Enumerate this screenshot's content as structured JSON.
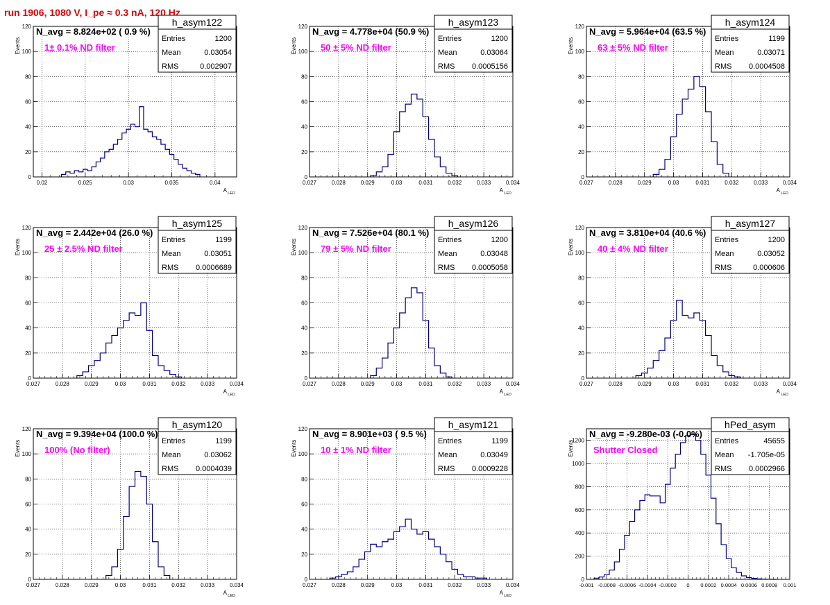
{
  "run_title": "run 1906,  1080 V, I_pe ≈ 0.3 nA, 120 Hz",
  "stats_labels": {
    "entries": "Entries",
    "mean": "Mean",
    "rms": "RMS"
  },
  "colors": {
    "histogram": "#000080",
    "filter_label": "#ff00ff",
    "run_title": "#e00000",
    "grid": "#000000"
  },
  "chart_data": [
    {
      "type": "bar",
      "name": "h_asym122",
      "navg": "N_avg = 8.824e+02 ( 0.9 %)",
      "filter": "1± 0.1% ND filter",
      "entries": "1200",
      "mean": "0.03054",
      "rms": "0.002907",
      "xlabel": "A",
      "xlabel_sub": "LED",
      "ylabel": "Events",
      "xlim": [
        0.019,
        0.0425
      ],
      "ylim": [
        0,
        120
      ],
      "x_ticks": [
        "0.02",
        "0.025",
        "0.03",
        "0.035",
        "0.04"
      ],
      "y_ticks": [
        "0",
        "20",
        "40",
        "60",
        "80",
        "100",
        "120"
      ],
      "x": [
        0.0225,
        0.023,
        0.0235,
        0.024,
        0.0245,
        0.025,
        0.0255,
        0.026,
        0.0265,
        0.027,
        0.0275,
        0.028,
        0.0285,
        0.029,
        0.0295,
        0.03,
        0.0305,
        0.031,
        0.0315,
        0.032,
        0.0325,
        0.033,
        0.0335,
        0.034,
        0.0345,
        0.035,
        0.0355,
        0.036,
        0.0365,
        0.037,
        0.0375,
        0.038
      ],
      "values": [
        2,
        4,
        3,
        5,
        4,
        6,
        5,
        8,
        12,
        15,
        20,
        22,
        26,
        30,
        35,
        38,
        42,
        40,
        56,
        38,
        36,
        32,
        30,
        26,
        22,
        18,
        14,
        10,
        7,
        5,
        3,
        2
      ]
    },
    {
      "type": "bar",
      "name": "h_asym123",
      "navg": "N_avg = 4.778e+04 (50.9 %)",
      "filter": "50 ± 5% ND filter",
      "entries": "1200",
      "mean": "0.03064",
      "rms": "0.0005156",
      "xlabel": "A",
      "xlabel_sub": "LED",
      "ylabel": "Events",
      "xlim": [
        0.027,
        0.034
      ],
      "ylim": [
        0,
        120
      ],
      "x_ticks": [
        "0.027",
        "0.028",
        "0.029",
        "0.03",
        "0.031",
        "0.032",
        "0.033",
        "0.034"
      ],
      "y_ticks": [
        "0",
        "20",
        "40",
        "60",
        "80",
        "100",
        "120"
      ],
      "x": [
        0.0292,
        0.0294,
        0.0296,
        0.0298,
        0.03,
        0.0302,
        0.0304,
        0.0306,
        0.0308,
        0.031,
        0.0312,
        0.0314,
        0.0316,
        0.0318,
        0.032
      ],
      "values": [
        1,
        4,
        8,
        18,
        36,
        52,
        58,
        66,
        62,
        48,
        30,
        16,
        8,
        3,
        1
      ]
    },
    {
      "type": "bar",
      "name": "h_asym124",
      "navg": "N_avg = 5.964e+04 (63.5 %)",
      "filter": "63 ± 5% ND filter",
      "entries": "1199",
      "mean": "0.03071",
      "rms": "0.0004508",
      "xlabel": "A",
      "xlabel_sub": "LED",
      "ylabel": "Events",
      "xlim": [
        0.027,
        0.034
      ],
      "ylim": [
        0,
        120
      ],
      "x_ticks": [
        "0.027",
        "0.028",
        "0.029",
        "0.03",
        "0.031",
        "0.032",
        "0.033",
        "0.034"
      ],
      "y_ticks": [
        "0",
        "20",
        "40",
        "60",
        "80",
        "100",
        "120"
      ],
      "x": [
        0.0294,
        0.0296,
        0.0298,
        0.03,
        0.0302,
        0.0304,
        0.0306,
        0.0308,
        0.031,
        0.0312,
        0.0314,
        0.0316,
        0.0318
      ],
      "values": [
        2,
        6,
        14,
        32,
        50,
        62,
        70,
        80,
        72,
        52,
        28,
        10,
        3
      ]
    },
    {
      "type": "bar",
      "name": "h_asym125",
      "navg": "N_avg = 2.442e+04 (26.0 %)",
      "filter": "25 ± 2.5% ND filter",
      "entries": "1199",
      "mean": "0.03051",
      "rms": "0.0006689",
      "xlabel": "A",
      "xlabel_sub": "LED",
      "ylabel": "Events",
      "xlim": [
        0.027,
        0.034
      ],
      "ylim": [
        0,
        120
      ],
      "x_ticks": [
        "0.027",
        "0.028",
        "0.029",
        "0.03",
        "0.031",
        "0.032",
        "0.033",
        "0.034"
      ],
      "y_ticks": [
        "0",
        "20",
        "40",
        "60",
        "80",
        "100",
        "120"
      ],
      "x": [
        0.0286,
        0.0288,
        0.029,
        0.0292,
        0.0294,
        0.0296,
        0.0298,
        0.03,
        0.0302,
        0.0304,
        0.0306,
        0.0308,
        0.031,
        0.0312,
        0.0314,
        0.0316,
        0.0318,
        0.032
      ],
      "values": [
        2,
        5,
        10,
        14,
        20,
        28,
        34,
        40,
        46,
        52,
        50,
        60,
        38,
        18,
        10,
        6,
        3,
        1
      ]
    },
    {
      "type": "bar",
      "name": "h_asym126",
      "navg": "N_avg = 7.526e+04 (80.1 %)",
      "filter": "79 ± 5% ND filter",
      "entries": "1200",
      "mean": "0.03048",
      "rms": "0.0005058",
      "xlabel": "A",
      "xlabel_sub": "LED",
      "ylabel": "Events",
      "xlim": [
        0.027,
        0.034
      ],
      "ylim": [
        0,
        120
      ],
      "x_ticks": [
        "0.027",
        "0.028",
        "0.029",
        "0.03",
        "0.031",
        "0.032",
        "0.033",
        "0.034"
      ],
      "y_ticks": [
        "0",
        "20",
        "40",
        "60",
        "80",
        "100",
        "120"
      ],
      "x": [
        0.0292,
        0.0294,
        0.0296,
        0.0298,
        0.03,
        0.0302,
        0.0304,
        0.0306,
        0.0308,
        0.031,
        0.0312,
        0.0314,
        0.0316,
        0.0318
      ],
      "values": [
        2,
        8,
        16,
        28,
        40,
        52,
        64,
        72,
        68,
        46,
        24,
        10,
        4,
        1
      ]
    },
    {
      "type": "bar",
      "name": "h_asym127",
      "navg": "N_avg = 3.810e+04 (40.6 %)",
      "filter": "40 ± 4% ND filter",
      "entries": "1200",
      "mean": "0.03052",
      "rms": "0.000606",
      "xlabel": "A",
      "xlabel_sub": "LED",
      "ylabel": "Events",
      "xlim": [
        0.027,
        0.034
      ],
      "ylim": [
        0,
        120
      ],
      "x_ticks": [
        "0.027",
        "0.028",
        "0.029",
        "0.03",
        "0.031",
        "0.032",
        "0.033",
        "0.034"
      ],
      "y_ticks": [
        "0",
        "20",
        "40",
        "60",
        "80",
        "100",
        "120"
      ],
      "x": [
        0.0288,
        0.029,
        0.0292,
        0.0294,
        0.0296,
        0.0298,
        0.03,
        0.0302,
        0.0304,
        0.0306,
        0.0308,
        0.031,
        0.0312,
        0.0314,
        0.0316,
        0.0318,
        0.032,
        0.0322
      ],
      "values": [
        2,
        4,
        8,
        14,
        22,
        32,
        46,
        62,
        50,
        48,
        52,
        46,
        34,
        18,
        10,
        5,
        2,
        1
      ]
    },
    {
      "type": "bar",
      "name": "h_asym120",
      "navg": "N_avg = 9.394e+04 (100.0 %)",
      "filter": "100% (No filter)",
      "entries": "1199",
      "mean": "0.03062",
      "rms": "0.0004039",
      "xlabel": "A",
      "xlabel_sub": "LED",
      "ylabel": "Events",
      "xlim": [
        0.027,
        0.034
      ],
      "ylim": [
        0,
        120
      ],
      "x_ticks": [
        "0.027",
        "0.028",
        "0.029",
        "0.03",
        "0.031",
        "0.032",
        "0.033",
        "0.034"
      ],
      "y_ticks": [
        "0",
        "20",
        "40",
        "60",
        "80",
        "100",
        "120"
      ],
      "x": [
        0.0296,
        0.0298,
        0.03,
        0.0302,
        0.0304,
        0.0306,
        0.0308,
        0.031,
        0.0312,
        0.0314,
        0.0316
      ],
      "values": [
        3,
        10,
        24,
        50,
        74,
        86,
        82,
        60,
        30,
        10,
        3
      ]
    },
    {
      "type": "bar",
      "name": "h_asym121",
      "navg": "N_avg = 8.901e+03 ( 9.5 %)",
      "filter": "10 ± 1% ND filter",
      "entries": "1199",
      "mean": "0.03049",
      "rms": "0.0009228",
      "xlabel": "A",
      "xlabel_sub": "LED",
      "ylabel": "Events",
      "xlim": [
        0.027,
        0.034
      ],
      "ylim": [
        0,
        120
      ],
      "x_ticks": [
        "0.027",
        "0.028",
        "0.029",
        "0.03",
        "0.031",
        "0.032",
        "0.033",
        "0.034"
      ],
      "y_ticks": [
        "0",
        "20",
        "40",
        "60",
        "80",
        "100",
        "120"
      ],
      "x": [
        0.0278,
        0.028,
        0.0282,
        0.0284,
        0.0286,
        0.0288,
        0.029,
        0.0292,
        0.0294,
        0.0296,
        0.0298,
        0.03,
        0.0302,
        0.0304,
        0.0306,
        0.0308,
        0.031,
        0.0312,
        0.0314,
        0.0316,
        0.0318,
        0.032,
        0.0322,
        0.0324,
        0.0326,
        0.0328,
        0.033
      ],
      "values": [
        1,
        2,
        4,
        6,
        10,
        16,
        22,
        28,
        26,
        30,
        32,
        38,
        42,
        48,
        40,
        36,
        38,
        32,
        26,
        20,
        14,
        8,
        4,
        2,
        2,
        1,
        1
      ]
    },
    {
      "type": "bar",
      "name": "hPed_asym",
      "navg": "N_avg = -9.280e-03 (-0.0%)",
      "filter": "Shutter Closed",
      "entries": "45655",
      "mean": "-1.705e-05",
      "rms": "0.0002966",
      "xlabel": "",
      "xlabel_sub": "",
      "ylabel": "Events",
      "xlim": [
        -0.001,
        0.001
      ],
      "ylim": [
        0,
        1300
      ],
      "x_ticks": [
        "-0.001",
        "-0.0008",
        "-0.0006",
        "-0.0004",
        "-0.0002",
        "0",
        "0.0002",
        "0.0004",
        "0.0006",
        "0.0008",
        "0.001"
      ],
      "y_ticks": [
        "0",
        "200",
        "400",
        "600",
        "800",
        "1000",
        "1200"
      ],
      "x": [
        -0.0009,
        -0.00085,
        -0.0008,
        -0.00075,
        -0.0007,
        -0.00065,
        -0.0006,
        -0.00055,
        -0.0005,
        -0.00045,
        -0.0004,
        -0.00035,
        -0.0003,
        -0.00025,
        -0.0002,
        -0.00015,
        -0.0001,
        -5e-05,
        0,
        5e-05,
        0.0001,
        0.00015,
        0.0002,
        0.00025,
        0.0003,
        0.00035,
        0.0004,
        0.00045,
        0.0005,
        0.00055,
        0.0006,
        0.00065,
        0.0007,
        0.00075,
        0.0008,
        0.00085
      ],
      "values": [
        10,
        20,
        40,
        80,
        150,
        260,
        380,
        500,
        600,
        680,
        730,
        720,
        720,
        660,
        820,
        960,
        1080,
        1180,
        1240,
        1250,
        1200,
        1080,
        900,
        700,
        480,
        300,
        180,
        100,
        60,
        30,
        15,
        8,
        4,
        2,
        1,
        0
      ]
    }
  ]
}
